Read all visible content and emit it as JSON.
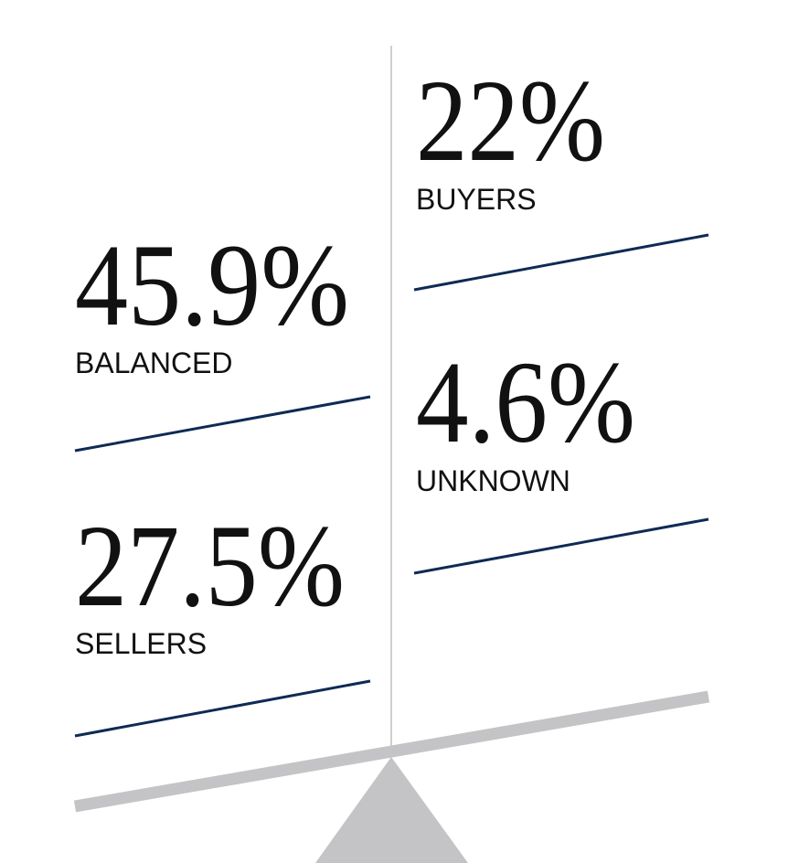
{
  "stats": [
    {
      "value": "22%",
      "label": "BUYERS"
    },
    {
      "value": "45.9%",
      "label": "BALANCED"
    },
    {
      "value": "4.6%",
      "label": "UNKNOWN"
    },
    {
      "value": "27.5%",
      "label": "SELLERS"
    }
  ]
}
